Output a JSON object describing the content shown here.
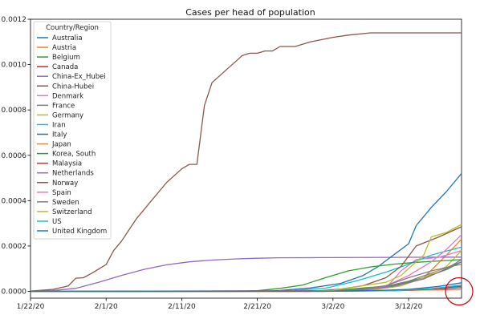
{
  "chart_data": {
    "type": "line",
    "title": "Cases per head of population",
    "xlabel": "",
    "ylabel": "",
    "x_start": "1/22/20",
    "x_end": "3/19/20",
    "xticks": [
      "1/22/20",
      "2/1/20",
      "2/11/20",
      "2/21/20",
      "3/2/20",
      "3/12/20"
    ],
    "ylim": [
      -3e-05,
      0.0012
    ],
    "yticks": [
      "0.0000",
      "0.0002",
      "0.0004",
      "0.0006",
      "0.0008",
      "0.0010",
      "0.0012"
    ],
    "ytick_values": [
      0,
      0.0002,
      0.0004,
      0.0006,
      0.0008,
      0.001,
      0.0012
    ],
    "grid": false,
    "legend": {
      "title": "Country/Region",
      "placement": "top-left"
    },
    "annotation": {
      "shape": "circle",
      "color": "#cc0000",
      "x": "3/19/20",
      "y": 0.0
    },
    "series": [
      {
        "name": "Australia",
        "color": "#1f77b4",
        "points": [
          [
            "1/22/20",
            0
          ],
          [
            "3/1/20",
            1e-06
          ],
          [
            "3/10/20",
            4e-06
          ],
          [
            "3/15/20",
            1.2e-05
          ],
          [
            "3/19/20",
            2.2e-05
          ]
        ]
      },
      {
        "name": "Austria",
        "color": "#ff7f0e",
        "points": [
          [
            "1/22/20",
            0
          ],
          [
            "2/25/20",
            0
          ],
          [
            "3/5/20",
            5e-06
          ],
          [
            "3/10/20",
            2e-05
          ],
          [
            "3/14/20",
            6e-05
          ],
          [
            "3/17/20",
            0.00016
          ],
          [
            "3/19/20",
            0.00023
          ]
        ]
      },
      {
        "name": "Belgium",
        "color": "#2ca02c",
        "points": [
          [
            "1/22/20",
            0
          ],
          [
            "3/1/20",
            0
          ],
          [
            "3/6/20",
            1.5e-05
          ],
          [
            "3/10/20",
            2.5e-05
          ],
          [
            "3/14/20",
            6e-05
          ],
          [
            "3/17/20",
            9.6e-05
          ],
          [
            "3/19/20",
            0.00013
          ]
        ]
      },
      {
        "name": "Canada",
        "color": "#d62728",
        "points": [
          [
            "1/22/20",
            0
          ],
          [
            "3/1/20",
            1e-06
          ],
          [
            "3/10/20",
            3e-06
          ],
          [
            "3/15/20",
            7e-06
          ],
          [
            "3/19/20",
            1.6e-05
          ]
        ]
      },
      {
        "name": "China-Ex_Hubei",
        "color": "#9467bd",
        "points": [
          [
            "1/22/20",
            1e-06
          ],
          [
            "1/25/20",
            4e-06
          ],
          [
            "1/28/20",
            1.3e-05
          ],
          [
            "1/31/20",
            4e-05
          ],
          [
            "2/3/20",
            7e-05
          ],
          [
            "2/6/20",
            9.7e-05
          ],
          [
            "2/9/20",
            0.000117
          ],
          [
            "2/12/20",
            0.00013
          ],
          [
            "2/15/20",
            0.000138
          ],
          [
            "2/18/20",
            0.000143
          ],
          [
            "2/21/20",
            0.000146
          ],
          [
            "2/24/20",
            0.000148
          ],
          [
            "3/1/20",
            0.000149
          ],
          [
            "3/10/20",
            0.00015
          ],
          [
            "3/19/20",
            0.000151
          ]
        ]
      },
      {
        "name": "China-Hubei",
        "color": "#8c564b",
        "points": [
          [
            "1/22/20",
            1e-06
          ],
          [
            "1/25/20",
            9e-06
          ],
          [
            "1/27/20",
            2.4e-05
          ],
          [
            "1/28/20",
            5.8e-05
          ],
          [
            "1/29/20",
            6e-05
          ],
          [
            "1/30/20",
            7.8e-05
          ],
          [
            "1/31/20",
            9.8e-05
          ],
          [
            "2/1/20",
            0.000118
          ],
          [
            "2/2/20",
            0.00018
          ],
          [
            "2/3/20",
            0.00022
          ],
          [
            "2/4/20",
            0.00027
          ],
          [
            "2/5/20",
            0.00032
          ],
          [
            "2/6/20",
            0.00036
          ],
          [
            "2/7/20",
            0.0004
          ],
          [
            "2/8/20",
            0.00044
          ],
          [
            "2/9/20",
            0.00048
          ],
          [
            "2/10/20",
            0.00051
          ],
          [
            "2/11/20",
            0.00054
          ],
          [
            "2/12/20",
            0.00056
          ],
          [
            "2/13/20",
            0.00056
          ],
          [
            "2/14/20",
            0.00082
          ],
          [
            "2/15/20",
            0.00092
          ],
          [
            "2/16/20",
            0.00095
          ],
          [
            "2/17/20",
            0.00098
          ],
          [
            "2/18/20",
            0.00101
          ],
          [
            "2/19/20",
            0.00104
          ],
          [
            "2/20/20",
            0.00105
          ],
          [
            "2/21/20",
            0.00105
          ],
          [
            "2/22/20",
            0.00106
          ],
          [
            "2/23/20",
            0.00106
          ],
          [
            "2/24/20",
            0.00108
          ],
          [
            "2/26/20",
            0.00108
          ],
          [
            "2/28/20",
            0.0011
          ],
          [
            "3/2/20",
            0.00112
          ],
          [
            "3/4/20",
            0.00113
          ],
          [
            "3/7/20",
            0.00114
          ],
          [
            "3/12/20",
            0.00114
          ],
          [
            "3/19/20",
            0.00114
          ]
        ]
      },
      {
        "name": "Denmark",
        "color": "#e377c2",
        "points": [
          [
            "1/22/20",
            0
          ],
          [
            "3/2/20",
            0
          ],
          [
            "3/6/20",
            5e-06
          ],
          [
            "3/9/20",
            1.5e-05
          ],
          [
            "3/11/20",
            9e-05
          ],
          [
            "3/13/20",
            0.00014
          ],
          [
            "3/16/20",
            0.00015
          ],
          [
            "3/19/20",
            0.00018
          ]
        ]
      },
      {
        "name": "France",
        "color": "#7f7f7f",
        "points": [
          [
            "1/22/20",
            0
          ],
          [
            "2/27/20",
            0
          ],
          [
            "3/3/20",
            3e-06
          ],
          [
            "3/8/20",
            1.5e-05
          ],
          [
            "3/12/20",
            4.5e-05
          ],
          [
            "3/15/20",
            8e-05
          ],
          [
            "3/17/20",
            0.000105
          ],
          [
            "3/19/20",
            0.00013
          ]
        ]
      },
      {
        "name": "Germany",
        "color": "#bcbd22",
        "points": [
          [
            "1/22/20",
            0
          ],
          [
            "2/27/20",
            0
          ],
          [
            "3/3/20",
            2e-06
          ],
          [
            "3/8/20",
            1e-05
          ],
          [
            "3/11/20",
            2.4e-05
          ],
          [
            "3/14/20",
            6e-05
          ],
          [
            "3/17/20",
            0.00011
          ],
          [
            "3/19/20",
            0.00018
          ]
        ]
      },
      {
        "name": "Iran",
        "color": "#17becf",
        "points": [
          [
            "1/22/20",
            0
          ],
          [
            "2/20/20",
            0
          ],
          [
            "2/25/20",
            2e-06
          ],
          [
            "3/1/20",
            1.4e-05
          ],
          [
            "3/5/20",
            4.5e-05
          ],
          [
            "3/9/20",
            8.5e-05
          ],
          [
            "3/12/20",
            0.00012
          ],
          [
            "3/15/20",
            0.00016
          ],
          [
            "3/19/20",
            0.000195
          ]
        ]
      },
      {
        "name": "Italy",
        "color": "#1f77b4",
        "points": [
          [
            "1/22/20",
            0
          ],
          [
            "2/21/20",
            0
          ],
          [
            "2/24/20",
            4e-06
          ],
          [
            "2/28/20",
            1.5e-05
          ],
          [
            "3/3/20",
            3.5e-05
          ],
          [
            "3/6/20",
            7e-05
          ],
          [
            "3/8/20",
            0.00011
          ],
          [
            "3/10/20",
            0.00016
          ],
          [
            "3/12/20",
            0.00021
          ],
          [
            "3/13/20",
            0.00029
          ],
          [
            "3/15/20",
            0.00037
          ],
          [
            "3/17/20",
            0.00044
          ],
          [
            "3/19/20",
            0.00052
          ]
        ]
      },
      {
        "name": "Japan",
        "color": "#ff7f0e",
        "points": [
          [
            "1/22/20",
            0
          ],
          [
            "2/10/20",
            1e-06
          ],
          [
            "2/25/20",
            1e-06
          ],
          [
            "3/5/20",
            3e-06
          ],
          [
            "3/12/20",
            5e-06
          ],
          [
            "3/19/20",
            7e-06
          ]
        ]
      },
      {
        "name": "Korea, South",
        "color": "#2ca02c",
        "points": [
          [
            "1/22/20",
            0
          ],
          [
            "2/18/20",
            0
          ],
          [
            "2/21/20",
            3e-06
          ],
          [
            "2/24/20",
            1.3e-05
          ],
          [
            "2/27/20",
            2.8e-05
          ],
          [
            "3/1/20",
            6e-05
          ],
          [
            "3/4/20",
            9e-05
          ],
          [
            "3/7/20",
            0.000108
          ],
          [
            "3/10/20",
            0.00012
          ],
          [
            "3/13/20",
            0.000128
          ],
          [
            "3/16/20",
            0.000134
          ],
          [
            "3/19/20",
            0.00014
          ]
        ]
      },
      {
        "name": "Malaysia",
        "color": "#d62728",
        "points": [
          [
            "1/22/20",
            0
          ],
          [
            "3/10/20",
            4e-06
          ],
          [
            "3/14/20",
            8e-06
          ],
          [
            "3/17/20",
            1.8e-05
          ],
          [
            "3/19/20",
            2.8e-05
          ]
        ]
      },
      {
        "name": "Netherlands",
        "color": "#9467bd",
        "points": [
          [
            "1/22/20",
            0
          ],
          [
            "3/1/20",
            0
          ],
          [
            "3/6/20",
            8e-06
          ],
          [
            "3/10/20",
            2.2e-05
          ],
          [
            "3/14/20",
            5.5e-05
          ],
          [
            "3/17/20",
            0.0001
          ],
          [
            "3/19/20",
            0.00014
          ]
        ]
      },
      {
        "name": "Norway",
        "color": "#8c564b",
        "points": [
          [
            "1/22/20",
            0
          ],
          [
            "2/28/20",
            0
          ],
          [
            "3/3/20",
            1e-05
          ],
          [
            "3/6/20",
            2.5e-05
          ],
          [
            "3/9/20",
            6e-05
          ],
          [
            "3/11/20",
            0.00011
          ],
          [
            "3/13/20",
            0.0002
          ],
          [
            "3/16/20",
            0.00024
          ],
          [
            "3/19/20",
            0.000285
          ]
        ]
      },
      {
        "name": "Spain",
        "color": "#e377c2",
        "points": [
          [
            "1/22/20",
            0
          ],
          [
            "3/1/20",
            2e-06
          ],
          [
            "3/5/20",
            6e-06
          ],
          [
            "3/9/20",
            2.4e-05
          ],
          [
            "3/12/20",
            7e-05
          ],
          [
            "3/15/20",
            0.00013
          ],
          [
            "3/17/20",
            0.000185
          ],
          [
            "3/19/20",
            0.00025
          ]
        ]
      },
      {
        "name": "Sweden",
        "color": "#7f7f7f",
        "points": [
          [
            "1/22/20",
            0
          ],
          [
            "3/1/20",
            1e-06
          ],
          [
            "3/5/20",
            6e-06
          ],
          [
            "3/9/20",
            2.5e-05
          ],
          [
            "3/12/20",
            6e-05
          ],
          [
            "3/15/20",
            9e-05
          ],
          [
            "3/19/20",
            0.00012
          ]
        ]
      },
      {
        "name": "Switzerland",
        "color": "#bcbd22",
        "points": [
          [
            "1/22/20",
            0
          ],
          [
            "2/27/20",
            0
          ],
          [
            "3/2/20",
            5e-06
          ],
          [
            "3/6/20",
            2.5e-05
          ],
          [
            "3/9/20",
            4e-05
          ],
          [
            "3/11/20",
            7e-05
          ],
          [
            "3/13/20",
            0.00013
          ],
          [
            "3/14/20",
            0.00016
          ],
          [
            "3/15/20",
            0.00024
          ],
          [
            "3/17/20",
            0.00026
          ],
          [
            "3/19/20",
            0.000295
          ]
        ]
      },
      {
        "name": "US",
        "color": "#17becf",
        "points": [
          [
            "1/22/20",
            0
          ],
          [
            "3/5/20",
            1e-06
          ],
          [
            "3/10/20",
            3e-06
          ],
          [
            "3/15/20",
            1.2e-05
          ],
          [
            "3/19/20",
            2.8e-05
          ]
        ]
      },
      {
        "name": "United Kingdom",
        "color": "#1f77b4",
        "points": [
          [
            "1/22/20",
            0
          ],
          [
            "3/3/20",
            1e-06
          ],
          [
            "3/8/20",
            4e-06
          ],
          [
            "3/12/20",
            9e-06
          ],
          [
            "3/16/20",
            2.2e-05
          ],
          [
            "3/19/20",
            3.8e-05
          ]
        ]
      }
    ]
  }
}
